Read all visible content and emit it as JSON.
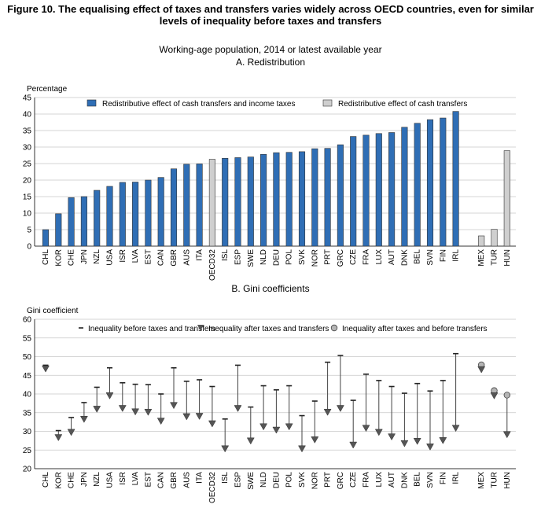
{
  "figure": {
    "title_line1": "Figure 10. The equalising effect of taxes and transfers varies widely across OECD countries, even for similar",
    "title_line2": "levels of inequality before taxes and transfers",
    "subtitle": "Working-age population, 2014 or latest available year"
  },
  "chart_data": [
    {
      "type": "bar",
      "title": "A. Redistribution",
      "ylabel": "Percentage",
      "ylim": [
        0,
        45
      ],
      "yticks": [
        0,
        5,
        10,
        15,
        20,
        25,
        30,
        35,
        40,
        45
      ],
      "grid": true,
      "legend_placement": "top",
      "series_legend": [
        {
          "name": "Redistributive effect of cash transfers and income taxes",
          "color": "#2f6eb5"
        },
        {
          "name": "Redistributive effect of cash transfers",
          "color": "#cfcfcf"
        }
      ],
      "categories": [
        "CHL",
        "KOR",
        "CHE",
        "JPN",
        "NZL",
        "USA",
        "ISR",
        "LVA",
        "EST",
        "CAN",
        "GBR",
        "AUS",
        "ITA",
        "OECD32",
        "ISL",
        "ESP",
        "SWE",
        "NLD",
        "DEU",
        "POL",
        "SVK",
        "NOR",
        "PRT",
        "GRC",
        "CZE",
        "FRA",
        "LUX",
        "AUT",
        "DNK",
        "BEL",
        "SVN",
        "FIN",
        "IRL",
        "",
        "MEX",
        "TUR",
        "HUN"
      ],
      "values": [
        5,
        9.8,
        14.7,
        15.0,
        16.9,
        18.1,
        19.3,
        19.4,
        20.0,
        20.8,
        23.4,
        24.8,
        24.9,
        26.3,
        26.6,
        26.8,
        27.0,
        27.8,
        28.3,
        28.4,
        28.6,
        29.5,
        29.6,
        30.7,
        33.2,
        33.6,
        34.1,
        34.4,
        36.0,
        37.2,
        38.3,
        38.8,
        40.8,
        null,
        3.1,
        5.1,
        28.9
      ],
      "bar_series": [
        "main",
        "main",
        "main",
        "main",
        "main",
        "main",
        "main",
        "main",
        "main",
        "main",
        "main",
        "main",
        "main",
        "oecd",
        "main",
        "main",
        "main",
        "main",
        "main",
        "main",
        "main",
        "main",
        "main",
        "main",
        "main",
        "main",
        "main",
        "main",
        "main",
        "main",
        "main",
        "main",
        "main",
        null,
        "transfers",
        "transfers",
        "transfers"
      ]
    },
    {
      "type": "scatter",
      "title": "B. Gini coefficients",
      "ylabel": "Gini coefficient",
      "ylim": [
        20,
        60
      ],
      "yticks": [
        20,
        25,
        30,
        35,
        40,
        45,
        50,
        55,
        60
      ],
      "grid": true,
      "legend_placement": "top",
      "series_legend": [
        {
          "name": "Inequality before taxes and transfers",
          "marker": "dash"
        },
        {
          "name": "Inequality after taxes and transfers",
          "marker": "triangle-down"
        },
        {
          "name": "Inequality after taxes and before transfers",
          "marker": "circle"
        }
      ],
      "categories": [
        "CHL",
        "KOR",
        "CHE",
        "JPN",
        "NZL",
        "USA",
        "ISR",
        "LVA",
        "EST",
        "CAN",
        "GBR",
        "AUS",
        "ITA",
        "OECD32",
        "ISL",
        "ESP",
        "SWE",
        "NLD",
        "DEU",
        "POL",
        "SVK",
        "NOR",
        "PRT",
        "GRC",
        "CZE",
        "FRA",
        "LUX",
        "AUT",
        "DNK",
        "BEL",
        "SVN",
        "FIN",
        "IRL",
        "",
        "MEX",
        "TUR",
        "HUN"
      ],
      "before": [
        47.7,
        30.2,
        33.7,
        37.7,
        41.8,
        47.0,
        43.0,
        42.6,
        42.5,
        40.0,
        47.0,
        43.4,
        43.8,
        42.0,
        33.3,
        47.7,
        36.5,
        42.2,
        41.1,
        42.2,
        34.2,
        38.1,
        48.5,
        50.3,
        38.3,
        45.3,
        43.6,
        42.0,
        40.2,
        42.8,
        40.8,
        43.6,
        50.8,
        null,
        47.8,
        40.9,
        39.7
      ],
      "after": [
        46.5,
        28.1,
        29.5,
        33.0,
        35.7,
        39.3,
        35.9,
        35.0,
        34.9,
        32.5,
        36.7,
        33.7,
        33.8,
        31.8,
        25.1,
        35.9,
        27.2,
        31.0,
        30.1,
        31.0,
        25.1,
        27.5,
        34.9,
        35.9,
        26.1,
        30.6,
        29.5,
        28.3,
        26.5,
        27.1,
        25.6,
        27.3,
        30.6,
        null,
        46.3,
        39.3,
        28.9
      ],
      "after_tax_before_transfers": [
        null,
        null,
        null,
        null,
        null,
        null,
        null,
        null,
        null,
        null,
        null,
        null,
        null,
        null,
        null,
        null,
        null,
        null,
        null,
        null,
        null,
        null,
        null,
        null,
        null,
        null,
        null,
        null,
        null,
        null,
        null,
        null,
        null,
        null,
        47.8,
        40.9,
        39.7
      ]
    }
  ]
}
